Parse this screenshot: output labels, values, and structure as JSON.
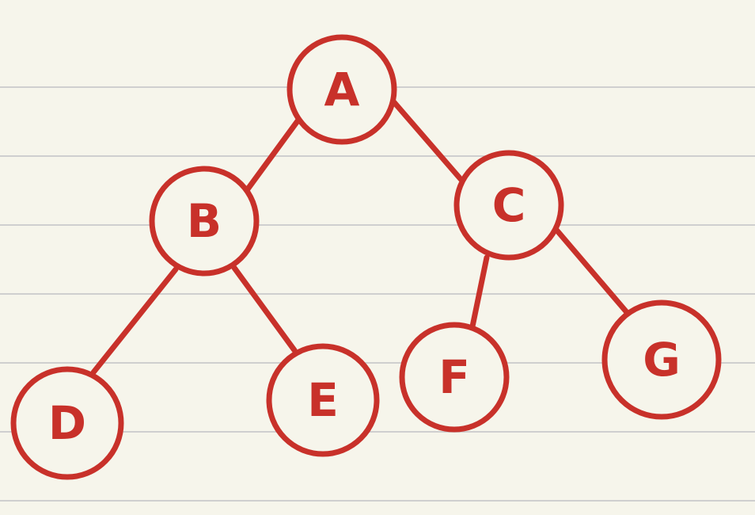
{
  "colors": {
    "paper": "#f6f5eb",
    "rule": "#cfcfcf",
    "ink": "#c8312a"
  },
  "tree": {
    "nodes": [
      {
        "id": "A",
        "label": "A"
      },
      {
        "id": "B",
        "label": "B"
      },
      {
        "id": "C",
        "label": "C"
      },
      {
        "id": "D",
        "label": "D"
      },
      {
        "id": "E",
        "label": "E"
      },
      {
        "id": "F",
        "label": "F"
      },
      {
        "id": "G",
        "label": "G"
      }
    ],
    "edges": [
      {
        "from": "A",
        "to": "B"
      },
      {
        "from": "A",
        "to": "C"
      },
      {
        "from": "B",
        "to": "D"
      },
      {
        "from": "B",
        "to": "E"
      },
      {
        "from": "C",
        "to": "F"
      },
      {
        "from": "C",
        "to": "G"
      }
    ]
  }
}
